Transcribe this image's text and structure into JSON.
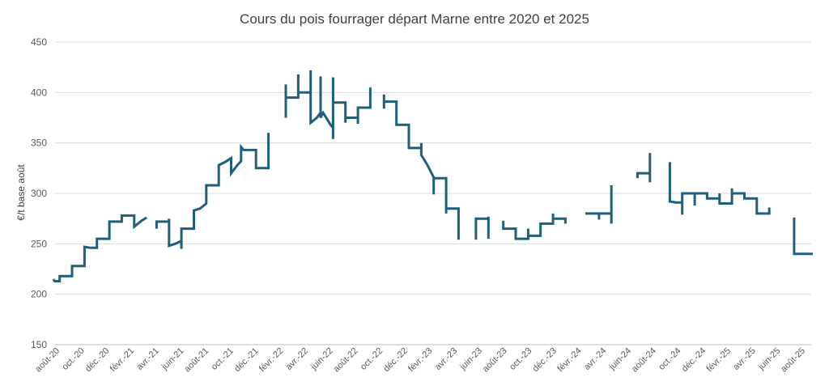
{
  "chart_data": {
    "type": "line",
    "title": "Cours du pois fourrager départ Marne entre 2020 et 2025",
    "xlabel": "",
    "ylabel": "€/t base août",
    "ylim": [
      150,
      450
    ],
    "yticks": [
      150,
      200,
      250,
      300,
      350,
      400,
      450
    ],
    "grid": "horizontal",
    "legend": "none",
    "x_tick_labels": [
      "août-20",
      "oct.-20",
      "déc.-20",
      "févr.-21",
      "avr.-21",
      "juin-21",
      "août-21",
      "oct.-21",
      "déc.-21",
      "févr.-22",
      "avr.-22",
      "juin-22",
      "août-22",
      "oct.-22",
      "déc.-22",
      "févr.-23",
      "avr.-23",
      "juin-23",
      "août-23",
      "oct.-23",
      "déc.-23",
      "févr.-24",
      "avr.-24",
      "juin-24",
      "août-24",
      "oct.-24",
      "déc.-24",
      "févr.-25",
      "avr.-25",
      "juin-25",
      "août-25"
    ],
    "x_unit": "months since août-20",
    "color": "#1f5f7a",
    "series": [
      {
        "values": [
          [
            0,
            215
          ],
          [
            0.1,
            213
          ],
          [
            0.5,
            213
          ],
          [
            0.5,
            218
          ],
          [
            1,
            218
          ],
          [
            1.5,
            218
          ],
          [
            1.5,
            228
          ],
          [
            2,
            228
          ],
          [
            2.5,
            228
          ],
          [
            2.5,
            247
          ],
          [
            3,
            246
          ],
          [
            3.5,
            246
          ],
          [
            3.5,
            255
          ],
          [
            4,
            255
          ],
          [
            4.5,
            255
          ],
          [
            4.5,
            272
          ],
          [
            5,
            272
          ],
          [
            5.5,
            272
          ],
          [
            5.5,
            278
          ],
          [
            6,
            278
          ],
          [
            6.5,
            278
          ],
          [
            6.5,
            267
          ],
          [
            7.1,
            273
          ],
          [
            7.5,
            276
          ]
        ]
      },
      {
        "values": [
          [
            8.3,
            265
          ],
          [
            8.3,
            272
          ],
          [
            8.8,
            272
          ],
          [
            9.3,
            272
          ],
          [
            9.3,
            275
          ],
          [
            9.3,
            258
          ],
          [
            9.3,
            248
          ],
          [
            9.8,
            250
          ],
          [
            10.3,
            253
          ],
          [
            10.3,
            245
          ],
          [
            10.3,
            265
          ],
          [
            10.8,
            265
          ],
          [
            11.3,
            265
          ],
          [
            11.3,
            283
          ],
          [
            11.8,
            285
          ],
          [
            12.3,
            290
          ],
          [
            12.3,
            308
          ],
          [
            12.8,
            308
          ],
          [
            13.3,
            308
          ],
          [
            13.3,
            328
          ],
          [
            13.8,
            331
          ],
          [
            14.3,
            335
          ],
          [
            14.3,
            320
          ],
          [
            14.8,
            328
          ],
          [
            15.1,
            332
          ],
          [
            15.1,
            346
          ],
          [
            15.3,
            343
          ],
          [
            15.8,
            343
          ],
          [
            16.3,
            343
          ],
          [
            16.3,
            325
          ],
          [
            16.8,
            325
          ],
          [
            17.3,
            325
          ],
          [
            17.3,
            360
          ]
        ]
      },
      {
        "values": [
          [
            18.7,
            375
          ],
          [
            18.7,
            408
          ],
          [
            18.7,
            395
          ],
          [
            19.2,
            395
          ],
          [
            19.7,
            395
          ],
          [
            19.7,
            418
          ],
          [
            19.7,
            400
          ],
          [
            20.2,
            400
          ],
          [
            20.7,
            400
          ],
          [
            20.7,
            422
          ],
          [
            20.7,
            396
          ],
          [
            20.7,
            370
          ],
          [
            21.2,
            375
          ],
          [
            21.5,
            380
          ],
          [
            21.5,
            416
          ],
          [
            21.5,
            375
          ],
          [
            21.7,
            380
          ],
          [
            22.3,
            368
          ],
          [
            22.5,
            365
          ],
          [
            22.5,
            354
          ],
          [
            22.5,
            415
          ],
          [
            22.5,
            390
          ],
          [
            23.0,
            390
          ],
          [
            23.5,
            390
          ],
          [
            23.5,
            370
          ],
          [
            23.5,
            375
          ],
          [
            24.0,
            375
          ],
          [
            24.5,
            375
          ],
          [
            24.5,
            369
          ],
          [
            24.5,
            385
          ],
          [
            25.0,
            385
          ],
          [
            25.5,
            385
          ],
          [
            25.5,
            405
          ]
        ]
      },
      {
        "values": [
          [
            26.6,
            384
          ],
          [
            26.6,
            398
          ],
          [
            26.6,
            391
          ],
          [
            27.2,
            391
          ],
          [
            27.6,
            391
          ],
          [
            27.6,
            368
          ],
          [
            28.1,
            368
          ],
          [
            28.6,
            368
          ],
          [
            28.6,
            345
          ],
          [
            29.1,
            345
          ],
          [
            29.6,
            345
          ],
          [
            29.6,
            350
          ],
          [
            29.6,
            338
          ],
          [
            30.1,
            328
          ],
          [
            30.6,
            316
          ],
          [
            30.6,
            299
          ],
          [
            30.6,
            315
          ],
          [
            31.1,
            315
          ],
          [
            31.6,
            315
          ],
          [
            31.6,
            280
          ],
          [
            31.6,
            285
          ],
          [
            32.1,
            285
          ],
          [
            32.6,
            285
          ],
          [
            32.6,
            254
          ]
        ]
      },
      {
        "values": [
          [
            34.0,
            254
          ],
          [
            34.0,
            275
          ],
          [
            34.5,
            275
          ],
          [
            35.0,
            275
          ],
          [
            35.0,
            255
          ],
          [
            35.0,
            277
          ]
        ]
      },
      {
        "values": [
          [
            36.2,
            273
          ],
          [
            36.2,
            265
          ],
          [
            36.7,
            265
          ],
          [
            37.2,
            265
          ],
          [
            37.2,
            255
          ],
          [
            37.7,
            255
          ],
          [
            38.2,
            255
          ],
          [
            38.2,
            265
          ],
          [
            38.2,
            258
          ],
          [
            38.7,
            258
          ],
          [
            39.2,
            258
          ],
          [
            39.2,
            270
          ],
          [
            39.7,
            270
          ],
          [
            40.2,
            270
          ],
          [
            40.2,
            280
          ],
          [
            40.2,
            275
          ],
          [
            40.7,
            275
          ],
          [
            41.2,
            275
          ],
          [
            41.2,
            270
          ]
        ]
      },
      {
        "values": [
          [
            42.8,
            280
          ],
          [
            43.4,
            280
          ],
          [
            43.9,
            280
          ],
          [
            43.9,
            274
          ],
          [
            43.9,
            280
          ],
          [
            44.4,
            280
          ],
          [
            44.9,
            280
          ],
          [
            44.9,
            270
          ],
          [
            44.9,
            308
          ]
        ]
      },
      {
        "values": [
          [
            47.0,
            315
          ],
          [
            47.0,
            320
          ],
          [
            47.5,
            320
          ],
          [
            48.0,
            320
          ],
          [
            48.0,
            311
          ],
          [
            48.0,
            340
          ]
        ]
      },
      {
        "values": [
          [
            49.6,
            331
          ],
          [
            49.6,
            292
          ],
          [
            50.1,
            291
          ],
          [
            50.6,
            291
          ],
          [
            50.6,
            279
          ],
          [
            50.6,
            300
          ],
          [
            51.1,
            300
          ],
          [
            51.6,
            300
          ],
          [
            51.6,
            288
          ],
          [
            51.6,
            300
          ],
          [
            52.1,
            300
          ],
          [
            52.6,
            300
          ],
          [
            52.6,
            295
          ],
          [
            53.1,
            295
          ],
          [
            53.6,
            295
          ],
          [
            53.6,
            300
          ],
          [
            53.6,
            290
          ],
          [
            54.1,
            290
          ],
          [
            54.6,
            290
          ],
          [
            54.6,
            305
          ],
          [
            54.6,
            300
          ],
          [
            55.1,
            300
          ],
          [
            55.6,
            300
          ],
          [
            55.6,
            295
          ],
          [
            56.1,
            295
          ],
          [
            56.6,
            295
          ],
          [
            56.6,
            280
          ],
          [
            57.1,
            280
          ],
          [
            57.6,
            280
          ],
          [
            57.6,
            286
          ]
        ]
      },
      {
        "values": [
          [
            59.6,
            276
          ],
          [
            59.6,
            248
          ],
          [
            59.6,
            240
          ],
          [
            60.5,
            240
          ],
          [
            61.1,
            240
          ]
        ]
      }
    ]
  }
}
